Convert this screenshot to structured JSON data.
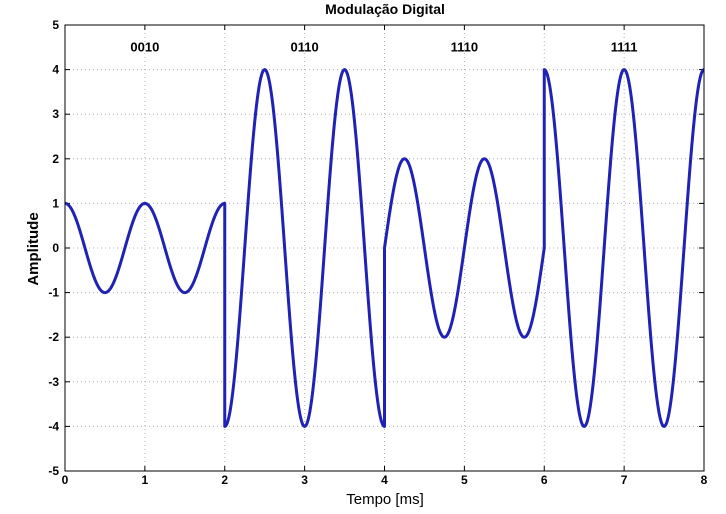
{
  "chart_data": {
    "type": "line",
    "title": "Modulação Digital",
    "xlabel": "Tempo [ms]",
    "ylabel": "Amplitude",
    "xlim": [
      0,
      8
    ],
    "ylim": [
      -5,
      5
    ],
    "xticks": [
      0,
      1,
      2,
      3,
      4,
      5,
      6,
      7,
      8
    ],
    "yticks": [
      -5,
      -4,
      -3,
      -2,
      -1,
      0,
      1,
      2,
      3,
      4,
      5
    ],
    "grid": true,
    "line_color": "#1f22b4",
    "annotations": [
      {
        "text": "0010",
        "x": 1,
        "y": 4.5
      },
      {
        "text": "0110",
        "x": 3,
        "y": 4.5
      },
      {
        "text": "1110",
        "x": 5,
        "y": 4.5
      },
      {
        "text": "1111",
        "x": 7,
        "y": 4.5
      }
    ],
    "segments": [
      {
        "bits": "0010",
        "t_start": 0,
        "t_end": 2,
        "amplitude": 1,
        "frequency_khz": 1,
        "phase_deg": 0
      },
      {
        "bits": "0110",
        "t_start": 2,
        "t_end": 4,
        "amplitude": 4,
        "frequency_khz": 1,
        "phase_deg": 180
      },
      {
        "bits": "1110",
        "t_start": 4,
        "t_end": 6,
        "amplitude": 2,
        "frequency_khz": 1,
        "phase_deg": -90
      },
      {
        "bits": "1111",
        "t_start": 6,
        "t_end": 8,
        "amplitude": 4,
        "frequency_khz": 1,
        "phase_deg": 0
      }
    ]
  }
}
